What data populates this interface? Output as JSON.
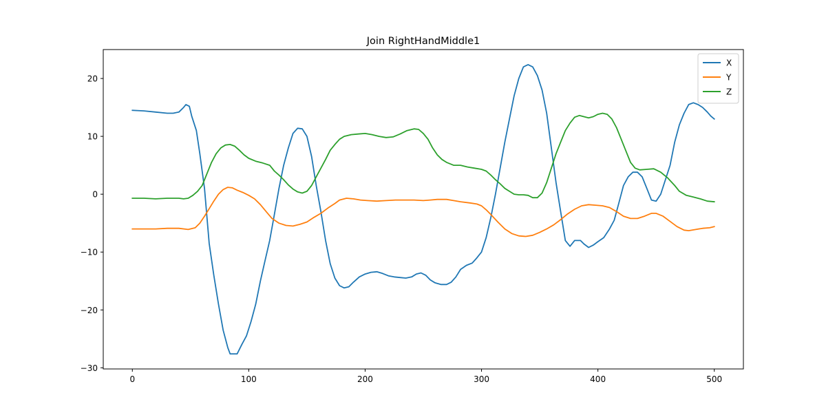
{
  "chart_data": {
    "type": "line",
    "title": "Join RightHandMiddle1",
    "xlabel": "",
    "ylabel": "",
    "xlim": [
      -25,
      525
    ],
    "ylim": [
      -30.2,
      25.0
    ],
    "xticks": [
      0,
      100,
      200,
      300,
      400,
      500
    ],
    "yticks": [
      -30,
      -20,
      -10,
      0,
      10,
      20
    ],
    "xtick_labels": [
      "0",
      "100",
      "200",
      "300",
      "400",
      "500"
    ],
    "ytick_labels": [
      "−30",
      "−20",
      "−10",
      "0",
      "10",
      "20"
    ],
    "grid": false,
    "legend_position": "top-right",
    "series": [
      {
        "name": "X",
        "color": "#1f77b4",
        "points": [
          [
            0,
            14.5
          ],
          [
            10,
            14.4
          ],
          [
            20,
            14.2
          ],
          [
            30,
            14.0
          ],
          [
            35,
            14.0
          ],
          [
            40,
            14.2
          ],
          [
            44,
            15.0
          ],
          [
            46,
            15.5
          ],
          [
            49,
            15.2
          ],
          [
            51,
            13.5
          ],
          [
            55,
            11.0
          ],
          [
            58,
            7.0
          ],
          [
            62,
            1.0
          ],
          [
            66,
            -8.5
          ],
          [
            70,
            -14.0
          ],
          [
            74,
            -19.0
          ],
          [
            78,
            -23.5
          ],
          [
            82,
            -26.5
          ],
          [
            84,
            -27.6
          ],
          [
            90,
            -27.6
          ],
          [
            94,
            -26.0
          ],
          [
            98,
            -24.5
          ],
          [
            102,
            -22.0
          ],
          [
            106,
            -19.0
          ],
          [
            110,
            -15.0
          ],
          [
            114,
            -11.5
          ],
          [
            118,
            -8.0
          ],
          [
            122,
            -3.5
          ],
          [
            126,
            1.0
          ],
          [
            130,
            5.0
          ],
          [
            134,
            8.0
          ],
          [
            138,
            10.5
          ],
          [
            142,
            11.4
          ],
          [
            146,
            11.3
          ],
          [
            150,
            10.0
          ],
          [
            154,
            6.5
          ],
          [
            158,
            1.5
          ],
          [
            162,
            -3.0
          ],
          [
            166,
            -8.0
          ],
          [
            170,
            -12.0
          ],
          [
            174,
            -14.5
          ],
          [
            178,
            -15.8
          ],
          [
            182,
            -16.2
          ],
          [
            186,
            -16.0
          ],
          [
            190,
            -15.2
          ],
          [
            195,
            -14.3
          ],
          [
            200,
            -13.8
          ],
          [
            205,
            -13.5
          ],
          [
            210,
            -13.4
          ],
          [
            215,
            -13.7
          ],
          [
            220,
            -14.1
          ],
          [
            225,
            -14.3
          ],
          [
            230,
            -14.4
          ],
          [
            235,
            -14.5
          ],
          [
            240,
            -14.3
          ],
          [
            244,
            -13.8
          ],
          [
            248,
            -13.6
          ],
          [
            252,
            -14.0
          ],
          [
            256,
            -14.8
          ],
          [
            260,
            -15.3
          ],
          [
            265,
            -15.6
          ],
          [
            270,
            -15.6
          ],
          [
            274,
            -15.2
          ],
          [
            278,
            -14.3
          ],
          [
            282,
            -13.0
          ],
          [
            287,
            -12.3
          ],
          [
            292,
            -11.9
          ],
          [
            296,
            -11.0
          ],
          [
            300,
            -10.0
          ],
          [
            304,
            -7.5
          ],
          [
            308,
            -4.0
          ],
          [
            312,
            0.0
          ],
          [
            316,
            4.5
          ],
          [
            320,
            9.0
          ],
          [
            324,
            13.0
          ],
          [
            328,
            17.0
          ],
          [
            332,
            20.0
          ],
          [
            336,
            22.0
          ],
          [
            340,
            22.4
          ],
          [
            344,
            22.0
          ],
          [
            348,
            20.5
          ],
          [
            352,
            18.0
          ],
          [
            356,
            14.0
          ],
          [
            360,
            8.0
          ],
          [
            364,
            2.0
          ],
          [
            368,
            -3.0
          ],
          [
            372,
            -8.0
          ],
          [
            376,
            -9.0
          ],
          [
            380,
            -8.0
          ],
          [
            385,
            -8.0
          ],
          [
            388,
            -8.6
          ],
          [
            392,
            -9.2
          ],
          [
            396,
            -8.8
          ],
          [
            400,
            -8.2
          ],
          [
            405,
            -7.5
          ],
          [
            410,
            -6.0
          ],
          [
            414,
            -4.5
          ],
          [
            418,
            -1.5
          ],
          [
            422,
            1.5
          ],
          [
            426,
            3.0
          ],
          [
            430,
            3.8
          ],
          [
            434,
            3.8
          ],
          [
            438,
            3.0
          ],
          [
            442,
            1.0
          ],
          [
            446,
            -1.0
          ],
          [
            450,
            -1.2
          ],
          [
            454,
            0.0
          ],
          [
            458,
            2.5
          ],
          [
            462,
            5.0
          ],
          [
            466,
            9.0
          ],
          [
            470,
            12.0
          ],
          [
            474,
            14.0
          ],
          [
            478,
            15.5
          ],
          [
            482,
            15.8
          ],
          [
            486,
            15.5
          ],
          [
            490,
            15.0
          ],
          [
            494,
            14.2
          ],
          [
            497,
            13.5
          ],
          [
            500,
            13.0
          ]
        ]
      },
      {
        "name": "Y",
        "color": "#ff7f0e",
        "points": [
          [
            0,
            -6.0
          ],
          [
            10,
            -6.0
          ],
          [
            20,
            -6.0
          ],
          [
            30,
            -5.9
          ],
          [
            40,
            -5.9
          ],
          [
            48,
            -6.1
          ],
          [
            54,
            -5.8
          ],
          [
            58,
            -5.0
          ],
          [
            62,
            -3.8
          ],
          [
            66,
            -2.5
          ],
          [
            70,
            -1.2
          ],
          [
            74,
            0.0
          ],
          [
            78,
            0.8
          ],
          [
            82,
            1.2
          ],
          [
            86,
            1.1
          ],
          [
            90,
            0.7
          ],
          [
            95,
            0.3
          ],
          [
            100,
            -0.2
          ],
          [
            105,
            -0.8
          ],
          [
            110,
            -1.8
          ],
          [
            115,
            -3.0
          ],
          [
            120,
            -4.2
          ],
          [
            126,
            -5.0
          ],
          [
            132,
            -5.4
          ],
          [
            138,
            -5.5
          ],
          [
            144,
            -5.2
          ],
          [
            150,
            -4.8
          ],
          [
            156,
            -4.0
          ],
          [
            162,
            -3.3
          ],
          [
            168,
            -2.4
          ],
          [
            174,
            -1.6
          ],
          [
            178,
            -1.0
          ],
          [
            184,
            -0.7
          ],
          [
            190,
            -0.8
          ],
          [
            196,
            -1.0
          ],
          [
            202,
            -1.1
          ],
          [
            210,
            -1.2
          ],
          [
            218,
            -1.1
          ],
          [
            226,
            -1.0
          ],
          [
            234,
            -1.0
          ],
          [
            242,
            -1.0
          ],
          [
            250,
            -1.1
          ],
          [
            256,
            -1.0
          ],
          [
            262,
            -0.9
          ],
          [
            270,
            -0.9
          ],
          [
            276,
            -1.1
          ],
          [
            282,
            -1.3
          ],
          [
            290,
            -1.5
          ],
          [
            296,
            -1.7
          ],
          [
            300,
            -2.0
          ],
          [
            304,
            -2.7
          ],
          [
            308,
            -3.5
          ],
          [
            314,
            -4.8
          ],
          [
            320,
            -6.0
          ],
          [
            326,
            -6.8
          ],
          [
            332,
            -7.2
          ],
          [
            338,
            -7.3
          ],
          [
            344,
            -7.1
          ],
          [
            350,
            -6.6
          ],
          [
            356,
            -6.0
          ],
          [
            362,
            -5.3
          ],
          [
            368,
            -4.4
          ],
          [
            374,
            -3.4
          ],
          [
            380,
            -2.6
          ],
          [
            386,
            -2.0
          ],
          [
            392,
            -1.8
          ],
          [
            398,
            -1.9
          ],
          [
            404,
            -2.0
          ],
          [
            410,
            -2.3
          ],
          [
            416,
            -3.0
          ],
          [
            422,
            -3.8
          ],
          [
            428,
            -4.2
          ],
          [
            434,
            -4.2
          ],
          [
            440,
            -3.8
          ],
          [
            446,
            -3.3
          ],
          [
            450,
            -3.3
          ],
          [
            456,
            -3.8
          ],
          [
            462,
            -4.7
          ],
          [
            468,
            -5.6
          ],
          [
            474,
            -6.2
          ],
          [
            478,
            -6.3
          ],
          [
            484,
            -6.1
          ],
          [
            490,
            -5.9
          ],
          [
            496,
            -5.8
          ],
          [
            500,
            -5.6
          ]
        ]
      },
      {
        "name": "Z",
        "color": "#2ca02c",
        "points": [
          [
            0,
            -0.7
          ],
          [
            10,
            -0.7
          ],
          [
            20,
            -0.8
          ],
          [
            30,
            -0.7
          ],
          [
            40,
            -0.7
          ],
          [
            44,
            -0.8
          ],
          [
            48,
            -0.7
          ],
          [
            52,
            -0.2
          ],
          [
            56,
            0.5
          ],
          [
            60,
            1.5
          ],
          [
            64,
            3.5
          ],
          [
            68,
            5.5
          ],
          [
            72,
            7.0
          ],
          [
            76,
            8.0
          ],
          [
            80,
            8.5
          ],
          [
            84,
            8.6
          ],
          [
            88,
            8.3
          ],
          [
            92,
            7.6
          ],
          [
            96,
            6.8
          ],
          [
            100,
            6.2
          ],
          [
            106,
            5.7
          ],
          [
            112,
            5.4
          ],
          [
            118,
            5.0
          ],
          [
            122,
            4.0
          ],
          [
            126,
            3.3
          ],
          [
            130,
            2.5
          ],
          [
            134,
            1.6
          ],
          [
            138,
            0.9
          ],
          [
            142,
            0.4
          ],
          [
            146,
            0.2
          ],
          [
            150,
            0.5
          ],
          [
            154,
            1.5
          ],
          [
            158,
            3.0
          ],
          [
            162,
            4.5
          ],
          [
            166,
            6.0
          ],
          [
            170,
            7.6
          ],
          [
            174,
            8.6
          ],
          [
            178,
            9.5
          ],
          [
            182,
            10.0
          ],
          [
            188,
            10.3
          ],
          [
            194,
            10.4
          ],
          [
            200,
            10.5
          ],
          [
            206,
            10.3
          ],
          [
            212,
            10.0
          ],
          [
            218,
            9.8
          ],
          [
            224,
            9.9
          ],
          [
            230,
            10.4
          ],
          [
            236,
            11.0
          ],
          [
            242,
            11.3
          ],
          [
            246,
            11.2
          ],
          [
            250,
            10.5
          ],
          [
            254,
            9.5
          ],
          [
            258,
            8.0
          ],
          [
            262,
            6.8
          ],
          [
            266,
            6.0
          ],
          [
            270,
            5.5
          ],
          [
            276,
            5.0
          ],
          [
            282,
            5.0
          ],
          [
            288,
            4.7
          ],
          [
            294,
            4.5
          ],
          [
            300,
            4.3
          ],
          [
            304,
            4.0
          ],
          [
            308,
            3.3
          ],
          [
            312,
            2.5
          ],
          [
            316,
            1.8
          ],
          [
            320,
            1.0
          ],
          [
            324,
            0.5
          ],
          [
            328,
            0.0
          ],
          [
            332,
            -0.1
          ],
          [
            336,
            -0.1
          ],
          [
            340,
            -0.2
          ],
          [
            344,
            -0.6
          ],
          [
            348,
            -0.6
          ],
          [
            352,
            0.2
          ],
          [
            356,
            2.0
          ],
          [
            360,
            4.5
          ],
          [
            364,
            7.0
          ],
          [
            368,
            9.0
          ],
          [
            372,
            11.0
          ],
          [
            376,
            12.3
          ],
          [
            380,
            13.3
          ],
          [
            384,
            13.6
          ],
          [
            388,
            13.4
          ],
          [
            392,
            13.2
          ],
          [
            396,
            13.4
          ],
          [
            400,
            13.8
          ],
          [
            404,
            14.0
          ],
          [
            408,
            13.8
          ],
          [
            412,
            13.0
          ],
          [
            416,
            11.5
          ],
          [
            420,
            9.5
          ],
          [
            424,
            7.5
          ],
          [
            428,
            5.5
          ],
          [
            432,
            4.5
          ],
          [
            436,
            4.2
          ],
          [
            442,
            4.3
          ],
          [
            448,
            4.4
          ],
          [
            454,
            3.8
          ],
          [
            460,
            2.8
          ],
          [
            466,
            1.5
          ],
          [
            470,
            0.5
          ],
          [
            476,
            -0.2
          ],
          [
            482,
            -0.5
          ],
          [
            488,
            -0.8
          ],
          [
            494,
            -1.2
          ],
          [
            500,
            -1.3
          ]
        ]
      }
    ]
  }
}
